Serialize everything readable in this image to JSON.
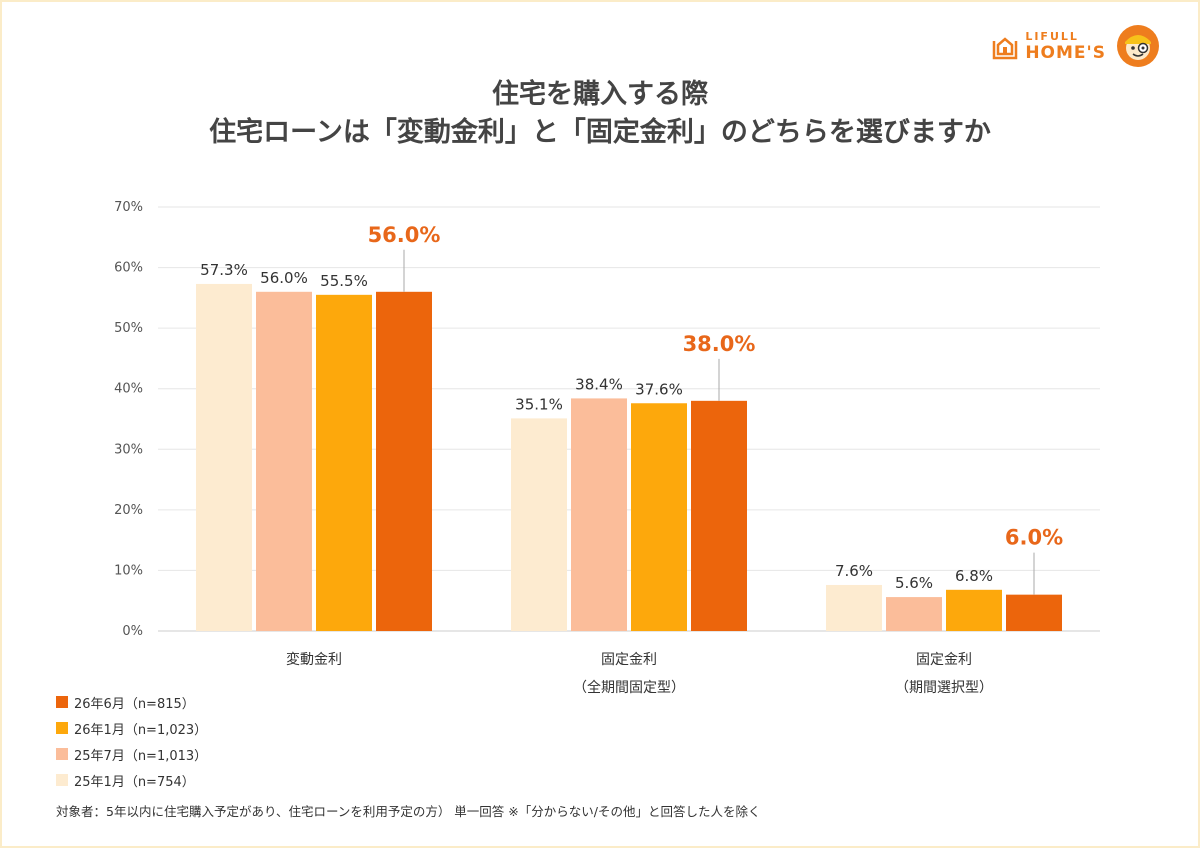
{
  "logo": {
    "line1": "LIFULL",
    "line2": "HOME'S"
  },
  "title": {
    "line1": "住宅を購入する際",
    "line2": "住宅ローンは「変動金利」と「固定金利」のどちらを選びますか"
  },
  "colors": {
    "accent": "#e8671a",
    "gridline": "#e6e6e6",
    "axis": "#cccccc"
  },
  "chart_data": {
    "type": "bar",
    "categories": [
      [
        "変動金利"
      ],
      [
        "固定金利",
        "（全期間固定型）"
      ],
      [
        "固定金利",
        "（期間選択型）"
      ]
    ],
    "series": [
      {
        "name": "25年1月（n=754）",
        "color": "#fdebd0",
        "values": [
          57.3,
          35.1,
          7.6
        ]
      },
      {
        "name": "25年7月（n=1,013）",
        "color": "#fbbd9a",
        "values": [
          56.0,
          38.4,
          5.6
        ]
      },
      {
        "name": "26年1月（n=1,023）",
        "color": "#fda80c",
        "values": [
          55.5,
          37.6,
          6.8
        ]
      },
      {
        "name": "26年6月（n=815）",
        "color": "#ec650c",
        "values": [
          56.0,
          38.0,
          6.0
        ],
        "highlight": true
      }
    ],
    "value_labels": [
      [
        "57.3%",
        "56.0%",
        "55.5%",
        "56.0%"
      ],
      [
        "35.1%",
        "38.4%",
        "37.6%",
        "38.0%"
      ],
      [
        "7.6%",
        "5.6%",
        "6.8%",
        "6.0%"
      ]
    ],
    "ylim": [
      0,
      70
    ],
    "yticks": [
      "0%",
      "10%",
      "20%",
      "30%",
      "40%",
      "50%",
      "60%",
      "70%"
    ],
    "grid": true,
    "legend_placement": "bottom-left",
    "legend_order": [
      "26年6月（n=815）",
      "26年1月（n=1,023）",
      "25年7月（n=1,013）",
      "25年1月（n=754）"
    ]
  },
  "footnote": "対象者：5年以内に住宅購入予定があり、住宅ローンを利用予定の方） 単一回答 ※「分からない/その他」と回答した人を除く"
}
